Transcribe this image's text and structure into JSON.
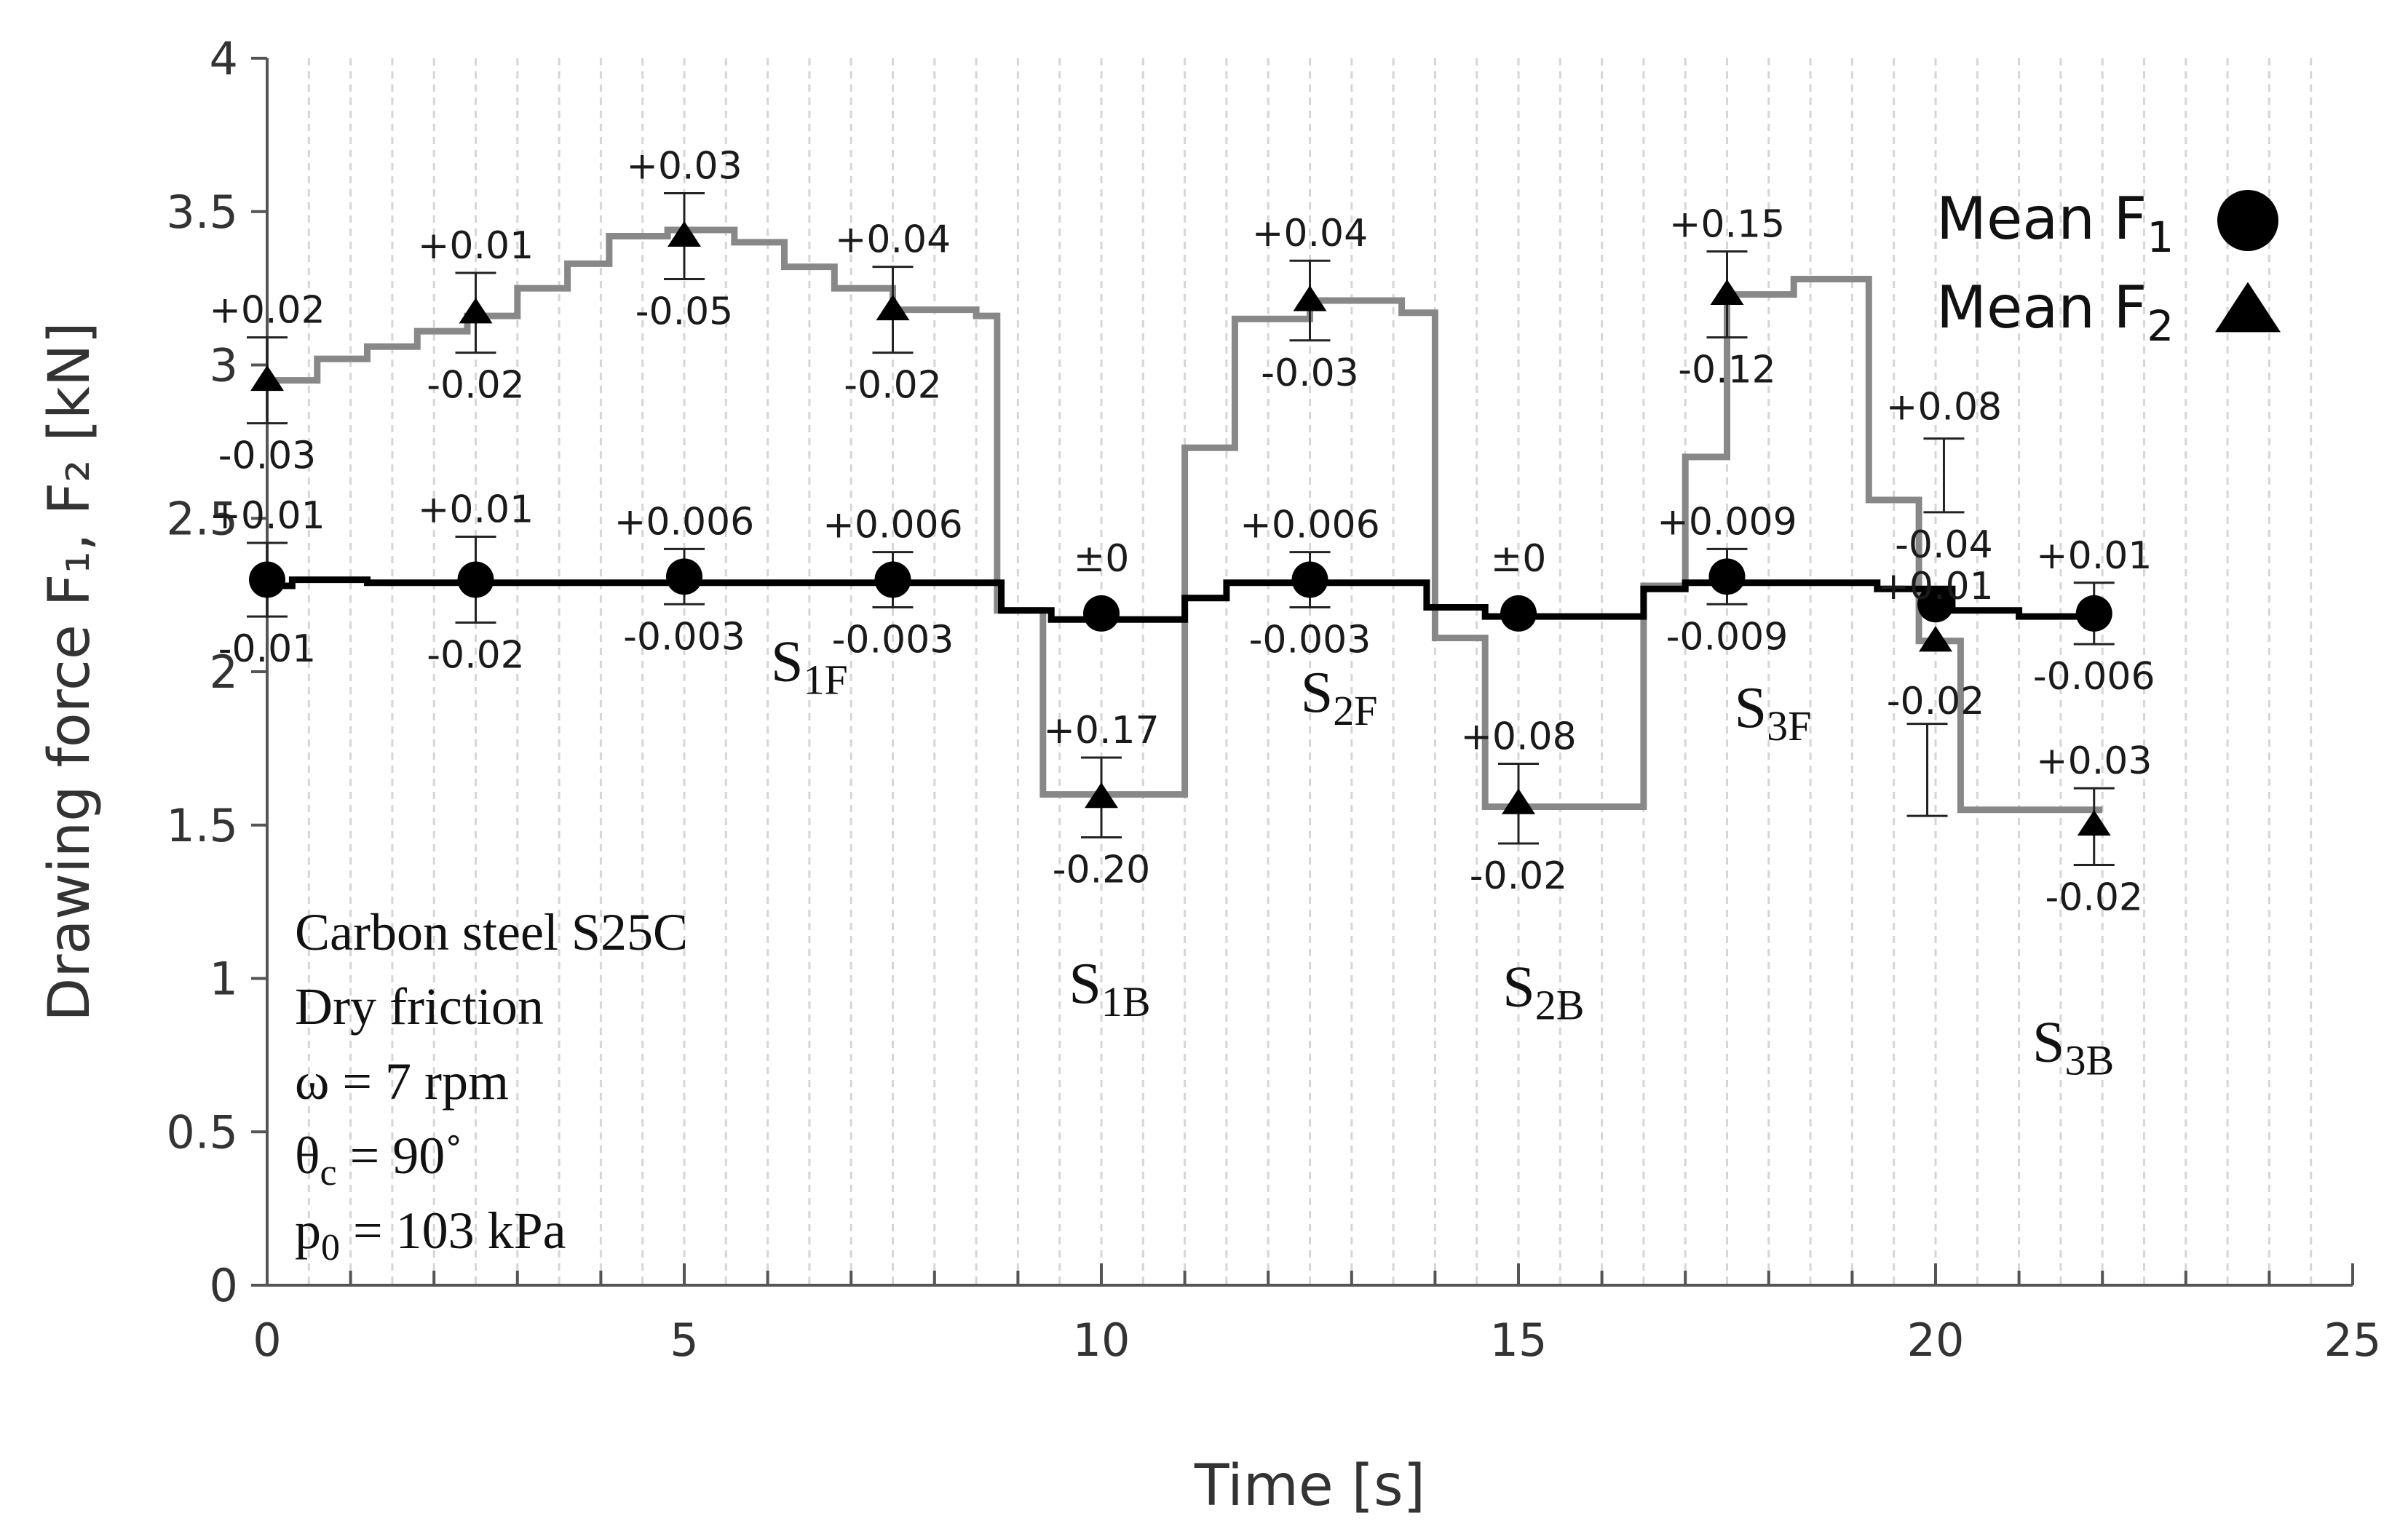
{
  "chart_data": {
    "type": "line",
    "title": "",
    "xlabel": "Time [s]",
    "ylabel": "Drawing force F₁, F₂ [kN]",
    "xlim": [
      0,
      25
    ],
    "ylim": [
      0,
      4
    ],
    "x_ticks": [
      "0",
      "5",
      "10",
      "15",
      "20",
      "25"
    ],
    "y_ticks": [
      "0",
      "0.5",
      "1",
      "1.5",
      "2",
      "2.5",
      "3",
      "3.5",
      "4"
    ],
    "x_tick_values": [
      0,
      5,
      10,
      15,
      20,
      25
    ],
    "y_tick_values": [
      0,
      0.5,
      1,
      1.5,
      2,
      2.5,
      3,
      3.5,
      4
    ],
    "minor_x_grid_step": 0.5,
    "legend": {
      "position": "top-right",
      "entries": [
        {
          "label": "Mean F",
          "sub": "1",
          "marker": "circle"
        },
        {
          "label": "Mean F",
          "sub": "2",
          "marker": "triangle"
        }
      ]
    },
    "info_box": [
      {
        "main": "Carbon steel S25C",
        "sub": "",
        "tail": ""
      },
      {
        "main": "Dry friction",
        "sub": "",
        "tail": ""
      },
      {
        "main": "ω = 7 rpm",
        "sub": "",
        "tail": ""
      },
      {
        "main": "θ",
        "sub": "c",
        "tail": " = 90˚"
      },
      {
        "main": "p",
        "sub": "0",
        "tail": " = 103 kPa"
      }
    ],
    "stage_labels": [
      {
        "main": "S",
        "sub": "1F",
        "x": 6.5,
        "y": 1.97
      },
      {
        "main": "S",
        "sub": "1B",
        "x": 10.1,
        "y": 0.92
      },
      {
        "main": "S",
        "sub": "2F",
        "x": 12.85,
        "y": 1.87
      },
      {
        "main": "S",
        "sub": "2B",
        "x": 15.3,
        "y": 0.91
      },
      {
        "main": "S",
        "sub": "3F",
        "x": 18.05,
        "y": 1.82
      },
      {
        "main": "S",
        "sub": "3B",
        "x": 21.65,
        "y": 0.73
      }
    ],
    "series": [
      {
        "name": "F1",
        "color": "#000000",
        "line": [
          [
            0,
            2.28
          ],
          [
            0.3,
            2.28
          ],
          [
            0.3,
            2.3
          ],
          [
            1.2,
            2.3
          ],
          [
            1.2,
            2.29
          ],
          [
            8.8,
            2.29
          ],
          [
            8.8,
            2.2
          ],
          [
            9.4,
            2.2
          ],
          [
            9.4,
            2.17
          ],
          [
            11.0,
            2.17
          ],
          [
            11.0,
            2.24
          ],
          [
            11.5,
            2.24
          ],
          [
            11.5,
            2.29
          ],
          [
            13.9,
            2.29
          ],
          [
            13.9,
            2.21
          ],
          [
            14.6,
            2.21
          ],
          [
            14.6,
            2.18
          ],
          [
            16.5,
            2.18
          ],
          [
            16.5,
            2.27
          ],
          [
            17.0,
            2.27
          ],
          [
            17.0,
            2.29
          ],
          [
            19.3,
            2.29
          ],
          [
            19.3,
            2.27
          ],
          [
            20.2,
            2.27
          ],
          [
            20.2,
            2.2
          ],
          [
            21.0,
            2.2
          ],
          [
            21.0,
            2.18
          ],
          [
            22.0,
            2.18
          ]
        ]
      },
      {
        "name": "F2",
        "color": "#888888",
        "line": [
          [
            0,
            2.95
          ],
          [
            0.6,
            2.95
          ],
          [
            0.6,
            3.02
          ],
          [
            1.2,
            3.02
          ],
          [
            1.2,
            3.06
          ],
          [
            1.8,
            3.06
          ],
          [
            1.8,
            3.11
          ],
          [
            2.4,
            3.11
          ],
          [
            2.4,
            3.16
          ],
          [
            3.0,
            3.16
          ],
          [
            3.0,
            3.25
          ],
          [
            3.6,
            3.25
          ],
          [
            3.6,
            3.33
          ],
          [
            4.1,
            3.33
          ],
          [
            4.1,
            3.42
          ],
          [
            4.8,
            3.42
          ],
          [
            4.8,
            3.44
          ],
          [
            5.6,
            3.44
          ],
          [
            5.6,
            3.4
          ],
          [
            6.2,
            3.4
          ],
          [
            6.2,
            3.32
          ],
          [
            6.8,
            3.32
          ],
          [
            6.8,
            3.25
          ],
          [
            7.5,
            3.25
          ],
          [
            7.5,
            3.18
          ],
          [
            8.5,
            3.18
          ],
          [
            8.5,
            3.16
          ],
          [
            8.75,
            3.16
          ],
          [
            8.75,
            2.2
          ],
          [
            9.3,
            2.2
          ],
          [
            9.3,
            1.6
          ],
          [
            11.0,
            1.6
          ],
          [
            11.0,
            2.73
          ],
          [
            11.6,
            2.73
          ],
          [
            11.6,
            3.15
          ],
          [
            12.5,
            3.15
          ],
          [
            12.5,
            3.21
          ],
          [
            13.6,
            3.21
          ],
          [
            13.6,
            3.17
          ],
          [
            14.0,
            3.17
          ],
          [
            14.0,
            2.11
          ],
          [
            14.6,
            2.11
          ],
          [
            14.6,
            1.56
          ],
          [
            16.5,
            1.56
          ],
          [
            16.5,
            2.28
          ],
          [
            17.0,
            2.28
          ],
          [
            17.0,
            2.7
          ],
          [
            17.5,
            2.7
          ],
          [
            17.5,
            3.23
          ],
          [
            18.3,
            3.23
          ],
          [
            18.3,
            3.28
          ],
          [
            19.2,
            3.28
          ],
          [
            19.2,
            2.56
          ],
          [
            19.8,
            2.56
          ],
          [
            19.8,
            2.1
          ],
          [
            20.3,
            2.1
          ],
          [
            20.3,
            1.55
          ],
          [
            22.0,
            1.55
          ]
        ]
      }
    ],
    "points": [
      {
        "series": "F1",
        "x": 0,
        "y": 2.3,
        "plus": "+0.01",
        "minus": "-0.01",
        "eh": 0.12,
        "el": 0.12
      },
      {
        "series": "F1",
        "x": 2.5,
        "y": 2.3,
        "plus": "+0.01",
        "minus": "-0.02",
        "eh": 0.14,
        "el": 0.14
      },
      {
        "series": "F1",
        "x": 5,
        "y": 2.31,
        "plus": "+0.006",
        "minus": "-0.003",
        "eh": 0.09,
        "el": 0.09
      },
      {
        "series": "F1",
        "x": 7.5,
        "y": 2.3,
        "plus": "+0.006",
        "minus": "-0.003",
        "eh": 0.09,
        "el": 0.09
      },
      {
        "series": "F1",
        "x": 10,
        "y": 2.19,
        "plus": "±0",
        "minus": "",
        "eh": 0,
        "el": 0
      },
      {
        "series": "F1",
        "x": 12.5,
        "y": 2.3,
        "plus": "+0.006",
        "minus": "-0.003",
        "eh": 0.09,
        "el": 0.09
      },
      {
        "series": "F1",
        "x": 15,
        "y": 2.19,
        "plus": "±0",
        "minus": "",
        "eh": 0,
        "el": 0
      },
      {
        "series": "F1",
        "x": 17.5,
        "y": 2.31,
        "plus": "+0.009",
        "minus": "-0.009",
        "eh": 0.09,
        "el": 0.09
      },
      {
        "series": "F1",
        "x": 20,
        "y": 2.22,
        "plus": "",
        "minus": "",
        "eh": 0,
        "el": 0
      },
      {
        "series": "F1",
        "x": 21.9,
        "y": 2.19,
        "plus": "+0.01",
        "minus": "-0.006",
        "eh": 0.1,
        "el": 0.1
      },
      {
        "series": "F2",
        "x": 0,
        "y": 2.95,
        "plus": "+0.02",
        "minus": "-0.03",
        "eh": 0.14,
        "el": 0.14
      },
      {
        "series": "F2",
        "x": 2.5,
        "y": 3.17,
        "plus": "+0.01",
        "minus": "-0.02",
        "eh": 0.13,
        "el": 0.13
      },
      {
        "series": "F2",
        "x": 5,
        "y": 3.42,
        "plus": "+0.03",
        "minus": "-0.05",
        "eh": 0.14,
        "el": 0.14
      },
      {
        "series": "F2",
        "x": 7.5,
        "y": 3.18,
        "plus": "+0.04",
        "minus": "-0.02",
        "eh": 0.14,
        "el": 0.14
      },
      {
        "series": "F2",
        "x": 10,
        "y": 1.59,
        "plus": "+0.17",
        "minus": "-0.20",
        "eh": 0.13,
        "el": 0.13
      },
      {
        "series": "F2",
        "x": 12.5,
        "y": 3.21,
        "plus": "+0.04",
        "minus": "-0.03",
        "eh": 0.13,
        "el": 0.13
      },
      {
        "series": "F2",
        "x": 15,
        "y": 1.57,
        "plus": "+0.08",
        "minus": "-0.02",
        "eh": 0.13,
        "el": 0.13
      },
      {
        "series": "F2",
        "x": 17.5,
        "y": 3.23,
        "plus": "+0.15",
        "minus": "-0.12",
        "eh": 0.14,
        "el": 0.14
      },
      {
        "series": "F2",
        "x": 20,
        "y": 2.1,
        "plus": "+0.01",
        "minus": "-0.02",
        "eh": 0,
        "el": 0
      },
      {
        "series": "F2",
        "x": 21.9,
        "y": 1.5,
        "plus": "+0.03",
        "minus": "-0.02",
        "eh": 0.12,
        "el": 0.13
      }
    ],
    "floating_error_bars": [
      {
        "x": 20.1,
        "y_low": 2.52,
        "y_high": 2.76,
        "plus": "+0.08",
        "minus": "-0.04"
      },
      {
        "x": 19.9,
        "y_low": 1.53,
        "y_high": 1.83,
        "plus": "",
        "minus": ""
      }
    ]
  }
}
